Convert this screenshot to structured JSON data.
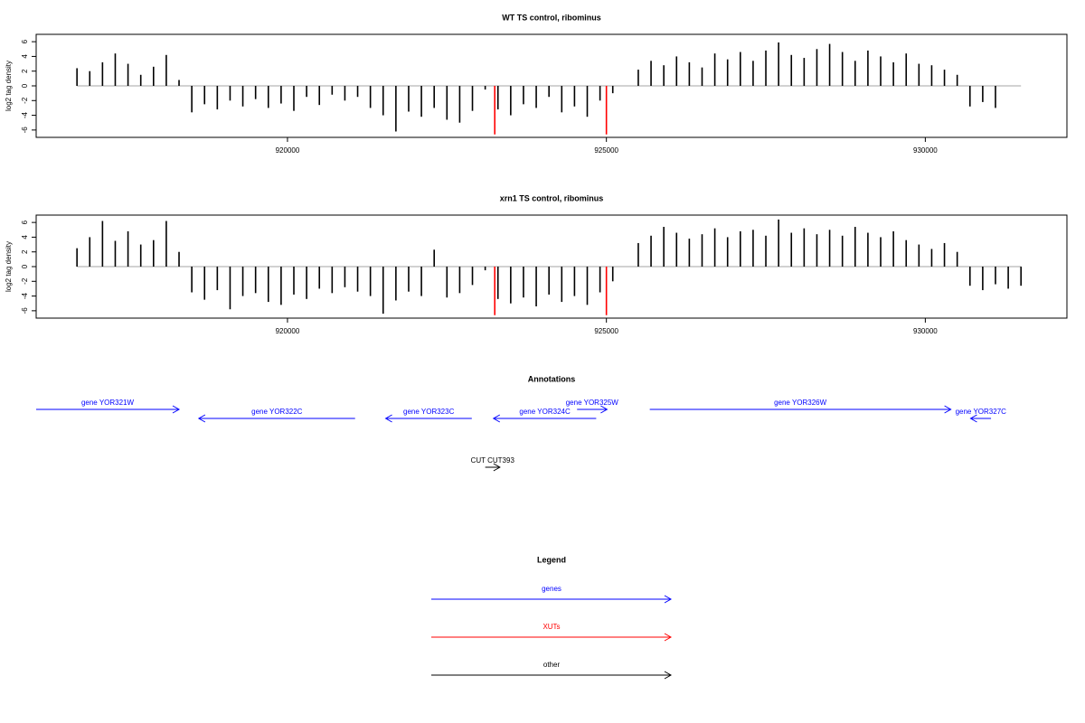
{
  "chart_data": [
    {
      "type": "bar",
      "title": "WT TS control, ribominus",
      "y_label": "log2 tag density",
      "xlim": [
        916060,
        932220
      ],
      "ylim": [
        -7,
        7
      ],
      "xticks": [
        920000,
        925000,
        930000
      ],
      "yticks": [
        -6,
        -4,
        -2,
        0,
        2,
        4,
        6
      ],
      "series": [
        {
          "color": "#000000",
          "x": [
            916700,
            916900,
            917100,
            917300,
            917500,
            917700,
            917900,
            918100,
            918300,
            918500,
            918700,
            918900,
            919100,
            919300,
            919500,
            919700,
            919900,
            920100,
            920300,
            920500,
            920700,
            920900,
            921100,
            921300,
            921500,
            921700,
            921900,
            922100,
            922300,
            922500,
            922700,
            922900,
            923100,
            923300,
            923500,
            923700,
            923900,
            924100,
            924300,
            924500,
            924700,
            924900,
            925100,
            925300,
            925500,
            925700,
            925900,
            926100,
            926300,
            926500,
            926700,
            926900,
            927100,
            927300,
            927500,
            927700,
            927900,
            928100,
            928300,
            928500,
            928700,
            928900,
            929100,
            929300,
            929500,
            929700,
            929900,
            930100,
            930300,
            930500,
            930700,
            930900,
            931100,
            931300,
            931500
          ],
          "values": [
            2.4,
            2.0,
            3.2,
            4.4,
            3.0,
            1.5,
            2.6,
            4.2,
            0.8,
            -3.6,
            -2.5,
            -3.2,
            -2.0,
            -2.8,
            -1.8,
            -3.0,
            -2.4,
            -3.4,
            -1.5,
            -2.6,
            -1.2,
            -2.0,
            -1.5,
            -3.0,
            -4.0,
            -6.2,
            -3.5,
            -4.2,
            -3.0,
            -4.6,
            -5.0,
            -3.4,
            -0.5,
            -3.2,
            -4.0,
            -2.5,
            -3.0,
            -1.5,
            -3.6,
            -2.8,
            -4.2,
            -2.0,
            -1.0,
            null,
            2.2,
            3.4,
            2.8,
            4.0,
            3.2,
            2.5,
            4.4,
            3.6,
            4.6,
            3.4,
            4.8,
            5.9,
            4.2,
            3.8,
            5.0,
            5.7,
            4.6,
            3.4,
            4.8,
            4.0,
            3.2,
            4.4,
            3.0,
            2.8,
            2.2,
            1.5,
            -2.8,
            -2.2,
            -3.0,
            null,
            null
          ]
        },
        {
          "color": "#ff0000",
          "x": [
            923250,
            925000
          ],
          "values": [
            -6.6,
            -6.6
          ]
        }
      ]
    },
    {
      "type": "bar",
      "title": "xrn1 TS control, ribominus",
      "y_label": "log2 tag density",
      "xlim": [
        916060,
        932220
      ],
      "ylim": [
        -7,
        7
      ],
      "xticks": [
        920000,
        925000,
        930000
      ],
      "yticks": [
        -6,
        -4,
        -2,
        0,
        2,
        4,
        6
      ],
      "series": [
        {
          "color": "#000000",
          "x": [
            916700,
            916900,
            917100,
            917300,
            917500,
            917700,
            917900,
            918100,
            918300,
            918500,
            918700,
            918900,
            919100,
            919300,
            919500,
            919700,
            919900,
            920100,
            920300,
            920500,
            920700,
            920900,
            921100,
            921300,
            921500,
            921700,
            921900,
            922100,
            922300,
            922500,
            922700,
            922900,
            923100,
            923300,
            923500,
            923700,
            923900,
            924100,
            924300,
            924500,
            924700,
            924900,
            925100,
            925300,
            925500,
            925700,
            925900,
            926100,
            926300,
            926500,
            926700,
            926900,
            927100,
            927300,
            927500,
            927700,
            927900,
            928100,
            928300,
            928500,
            928700,
            928900,
            929100,
            929300,
            929500,
            929700,
            929900,
            930100,
            930300,
            930500,
            930700,
            930900,
            931100,
            931300,
            931500
          ],
          "values": [
            2.5,
            4.0,
            6.2,
            3.5,
            4.8,
            3.0,
            3.6,
            6.2,
            2.0,
            -3.5,
            -4.5,
            -3.2,
            -5.8,
            -4.0,
            -3.6,
            -4.8,
            -5.2,
            -3.8,
            -4.4,
            -3.0,
            -3.6,
            -2.8,
            -3.4,
            -4.0,
            -6.4,
            -4.6,
            -3.4,
            -4.0,
            2.3,
            -4.2,
            -3.6,
            -2.5,
            -0.5,
            -4.4,
            -5.0,
            -4.2,
            -5.4,
            -3.8,
            -4.8,
            -4.0,
            -5.2,
            -3.5,
            -2.0,
            null,
            3.2,
            4.2,
            5.4,
            4.6,
            3.8,
            4.4,
            5.2,
            4.0,
            4.8,
            5.0,
            4.2,
            6.4,
            4.6,
            5.2,
            4.4,
            5.0,
            4.2,
            5.4,
            4.6,
            4.0,
            4.8,
            3.6,
            3.0,
            2.4,
            3.2,
            2.0,
            -2.6,
            -3.2,
            -2.4,
            -3.0,
            -2.6
          ]
        },
        {
          "color": "#ff0000",
          "x": [
            923250,
            925000
          ],
          "values": [
            -6.6,
            -6.6
          ]
        }
      ]
    }
  ],
  "annotations": {
    "title": "Annotations",
    "xlim": [
      916060,
      932220
    ],
    "features": [
      {
        "label": "gene YOR321W",
        "start": 916060,
        "end": 918300,
        "strand": "+",
        "track": "gene",
        "color": "#0000ff"
      },
      {
        "label": "gene YOR322C",
        "start": 918610,
        "end": 921060,
        "strand": "-",
        "track": "gene",
        "color": "#0000ff"
      },
      {
        "label": "gene YOR323C",
        "start": 921540,
        "end": 922890,
        "strand": "-",
        "track": "gene",
        "color": "#0000ff"
      },
      {
        "label": "gene YOR324C",
        "start": 923230,
        "end": 924840,
        "strand": "-",
        "track": "gene",
        "color": "#0000ff"
      },
      {
        "label": "gene YOR325W",
        "start": 924540,
        "end": 925010,
        "strand": "+",
        "track": "gene",
        "color": "#0000ff"
      },
      {
        "label": "gene YOR326W",
        "start": 925680,
        "end": 930400,
        "strand": "+",
        "track": "gene",
        "color": "#0000ff"
      },
      {
        "label": "gene YOR327C",
        "start": 930710,
        "end": 931030,
        "strand": "-",
        "track": "gene",
        "color": "#0000ff"
      },
      {
        "label": "CUT CUT393",
        "start": 923100,
        "end": 923330,
        "strand": "+",
        "track": "other",
        "color": "#000000"
      }
    ]
  },
  "legend": {
    "title": "Legend",
    "items": [
      {
        "label": "genes",
        "color": "#0000ff"
      },
      {
        "label": "XUTs",
        "color": "#ff0000"
      },
      {
        "label": "other",
        "color": "#000000"
      }
    ]
  }
}
